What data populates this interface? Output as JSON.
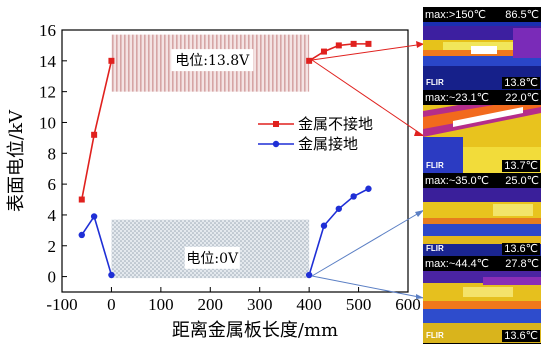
{
  "chart_data": {
    "type": "line",
    "xlabel": "距离金属板长度/mm",
    "ylabel": "表面电位/kV",
    "xlim": [
      -100,
      600
    ],
    "ylim": [
      -1,
      16
    ],
    "xticks": [
      -100,
      0,
      100,
      200,
      300,
      400,
      500,
      600
    ],
    "yticks": [
      0,
      2,
      4,
      6,
      8,
      10,
      12,
      14,
      16
    ],
    "series": [
      {
        "name": "金属不接地",
        "color": "#e0211e",
        "marker": "square",
        "segments": [
          [
            [
              -60,
              5.0
            ],
            [
              -35,
              9.2
            ],
            [
              0,
              14.0
            ]
          ],
          [
            [
              400,
              14.0
            ],
            [
              430,
              14.6
            ],
            [
              460,
              15.0
            ],
            [
              490,
              15.1
            ],
            [
              520,
              15.1
            ]
          ]
        ]
      },
      {
        "name": "金属接地",
        "color": "#1f2fd6",
        "marker": "circle",
        "segments": [
          [
            [
              -60,
              2.7
            ],
            [
              -35,
              3.9
            ],
            [
              0,
              0.1
            ]
          ],
          [
            [
              400,
              0.1
            ],
            [
              430,
              3.3
            ],
            [
              460,
              4.4
            ],
            [
              490,
              5.2
            ],
            [
              520,
              5.7
            ]
          ]
        ]
      }
    ],
    "regions": [
      {
        "label": "电位:13.8V",
        "x": [
          0,
          400
        ],
        "y": [
          12,
          15.7
        ],
        "pattern": "stripes"
      },
      {
        "label": "电位:0V",
        "x": [
          0,
          400
        ],
        "y": [
          -0.1,
          3.7
        ],
        "pattern": "dots"
      }
    ],
    "legend_position": "center-right",
    "grid": false
  },
  "thermal_images": [
    {
      "max_label": "max:>150℃",
      "max_value": "86.5℃",
      "min_value": "13.8℃",
      "brand": "FLIR"
    },
    {
      "max_label": "max:~23.1℃",
      "max_value": "22.0℃",
      "min_value": "13.7℃",
      "brand": "FLIR"
    },
    {
      "max_label": "max:~35.0℃",
      "max_value": "25.0℃",
      "min_value": "13.6℃",
      "brand": "FLIR"
    },
    {
      "max_label": "max:~44.4℃",
      "max_value": "27.8℃",
      "min_value": "13.6℃",
      "brand": "FLIR"
    }
  ]
}
